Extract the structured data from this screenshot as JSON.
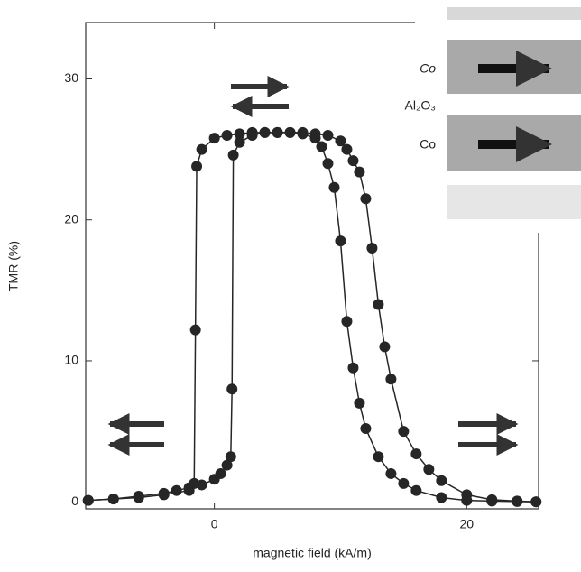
{
  "chart_data": {
    "type": "line",
    "xlabel": "magnetic field (kA/m)",
    "ylabel": "TMR (%)",
    "xlim": [
      -10.2,
      25.7
    ],
    "ylim": [
      -0.5,
      34
    ],
    "xticks": [
      0,
      20
    ],
    "yticks": [
      0,
      10,
      20,
      30
    ],
    "markers": true,
    "series": [
      {
        "color": "#262626",
        "x": [
          -10,
          -8,
          -6,
          -4,
          -3,
          -2,
          -1.6,
          -1.5,
          -1.4,
          -1,
          0,
          1,
          2,
          3,
          4,
          5,
          6,
          7,
          8,
          8.5,
          9,
          9.5,
          10,
          10.5,
          11,
          11.5,
          12,
          13,
          14,
          15,
          16,
          18,
          20,
          22,
          24,
          25.5
        ],
        "values": [
          0.1,
          0.2,
          0.4,
          0.6,
          0.8,
          1.0,
          1.3,
          12.2,
          23.8,
          25.0,
          25.8,
          26.0,
          26.1,
          26.2,
          26.2,
          26.2,
          26.2,
          26.1,
          25.8,
          25.2,
          24.0,
          22.3,
          18.5,
          12.8,
          9.5,
          7.0,
          5.2,
          3.2,
          2.0,
          1.3,
          0.8,
          0.3,
          0.1,
          0.05,
          0.02,
          0
        ]
      },
      {
        "color": "#262626",
        "x": [
          -10,
          -8,
          -6,
          -4,
          -2,
          -1,
          0,
          0.5,
          1,
          1.3,
          1.4,
          1.5,
          2,
          3,
          4,
          5,
          6,
          7,
          8,
          9,
          10,
          10.5,
          11,
          11.5,
          12,
          12.5,
          13,
          13.5,
          14,
          15,
          16,
          17,
          18,
          20,
          22,
          24,
          25.5
        ],
        "values": [
          0.1,
          0.2,
          0.3,
          0.5,
          0.8,
          1.2,
          1.6,
          2.0,
          2.6,
          3.2,
          8.0,
          24.6,
          25.5,
          26.0,
          26.2,
          26.2,
          26.2,
          26.2,
          26.1,
          26.0,
          25.6,
          25.0,
          24.2,
          23.4,
          21.5,
          18.0,
          14.0,
          11.0,
          8.7,
          5.0,
          3.4,
          2.3,
          1.5,
          0.5,
          0.15,
          0.05,
          0
        ]
      }
    ],
    "annotations": [
      "Co",
      "Al₂O₃",
      "Co"
    ]
  }
}
